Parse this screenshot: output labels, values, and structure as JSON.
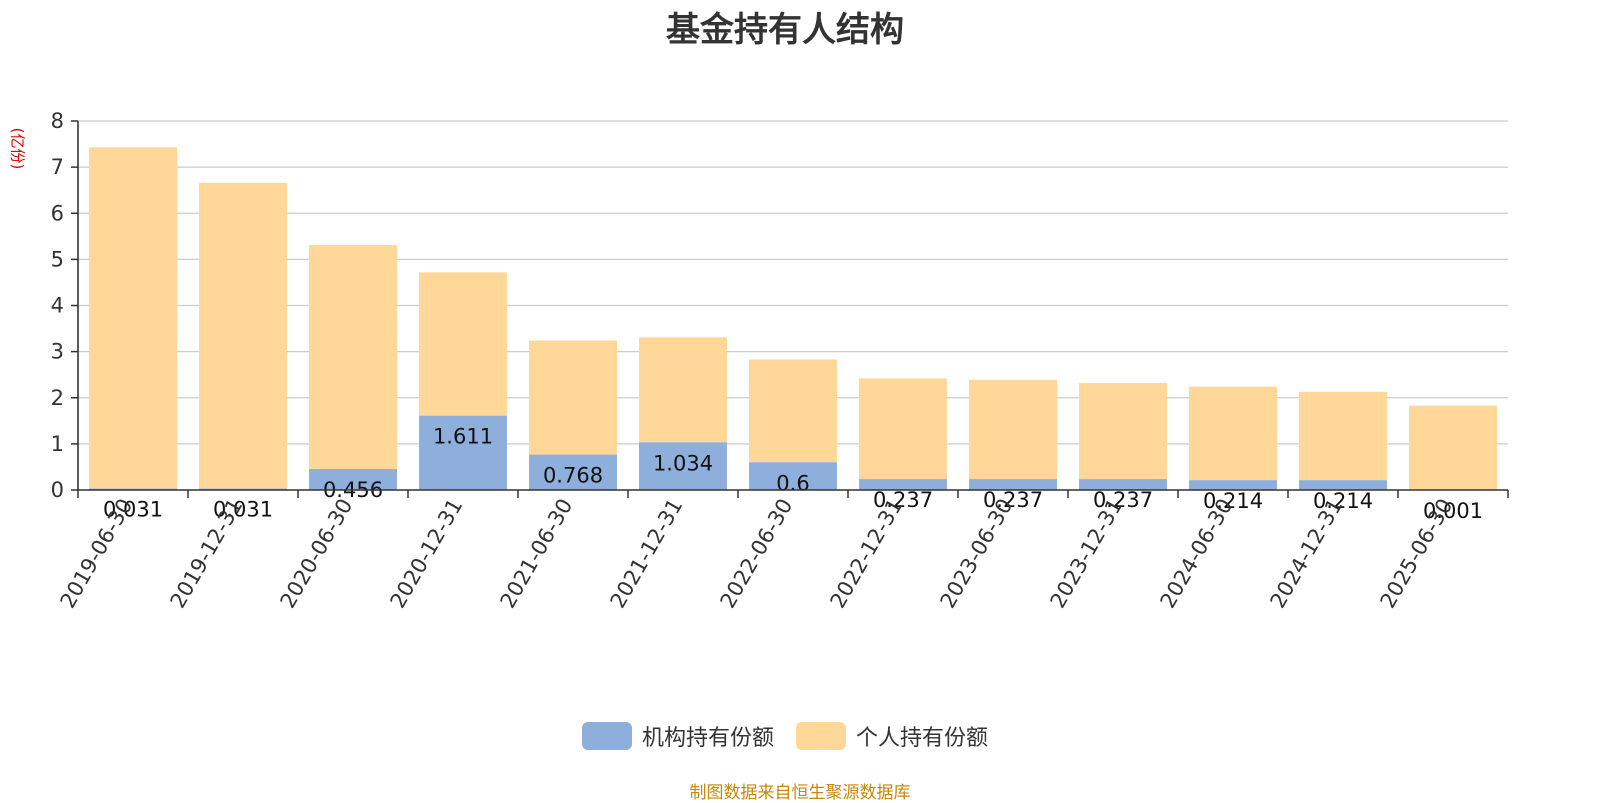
{
  "title": "基金持有人结构",
  "source_note": "制图数据来自恒生聚源数据库",
  "colors": {
    "institutional": "#8EAFDB",
    "individual": "#FFD899",
    "grid": "#cccccc",
    "axis": "#333333"
  },
  "chart_data": {
    "type": "bar",
    "stacked": true,
    "title": "基金持有人结构",
    "ylabel": "(亿份)",
    "ylim": [
      0,
      8
    ],
    "yticks": [
      0,
      1,
      2,
      3,
      4,
      5,
      6,
      7,
      8
    ],
    "grid": true,
    "legend_position": "bottom",
    "categories": [
      "2019-06-30",
      "2019-12-31",
      "2020-06-30",
      "2020-12-31",
      "2021-06-30",
      "2021-12-31",
      "2022-06-30",
      "2022-12-31",
      "2023-06-30",
      "2023-12-31",
      "2024-06-30",
      "2024-12-31",
      "2025-06-30"
    ],
    "series": [
      {
        "name": "机构持有份额",
        "color": "#8EAFDB",
        "values": [
          0.031,
          0.031,
          0.456,
          1.611,
          0.768,
          1.034,
          0.6,
          0.237,
          0.237,
          0.237,
          0.214,
          0.214,
          0.001
        ]
      },
      {
        "name": "个人持有份额",
        "color": "#FFD899",
        "values": [
          7.399,
          6.629,
          4.854,
          3.109,
          2.472,
          2.276,
          2.23,
          2.183,
          2.153,
          2.083,
          2.026,
          1.916,
          1.829
        ]
      }
    ]
  }
}
